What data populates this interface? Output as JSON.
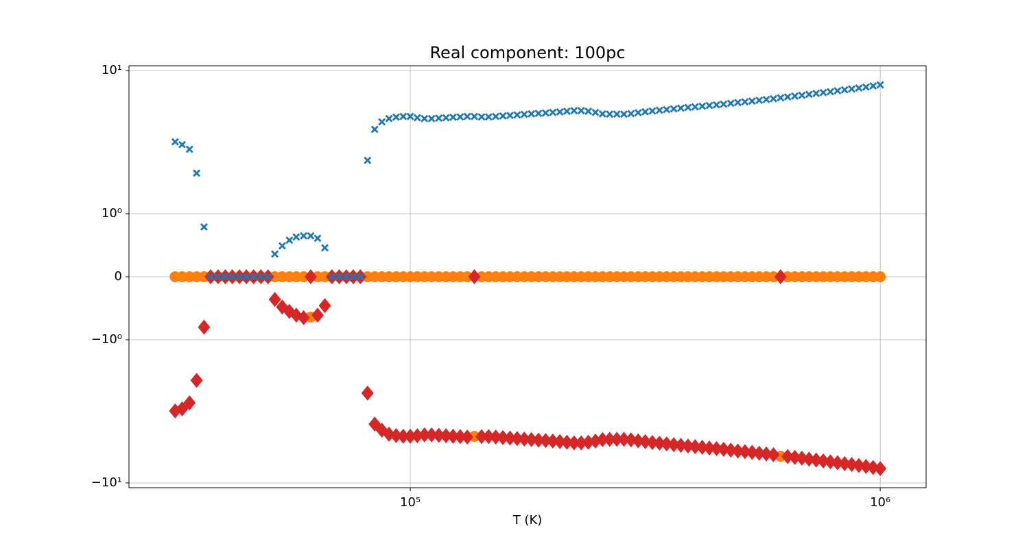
{
  "chart_data": {
    "type": "scatter",
    "title": "Real component: 100pc",
    "x_label": "T (K)",
    "xscale": "log",
    "yscale": "symlog",
    "linthresh": 1,
    "grid": true,
    "xlim": [
      25200,
      1252000
    ],
    "xticks": [
      {
        "value": 100000,
        "label": "10⁵"
      },
      {
        "value": 1000000,
        "label": "10⁶"
      }
    ],
    "ylim": [
      -10.8,
      10.8
    ],
    "yticks": [
      {
        "value": -10,
        "label": "−10¹"
      },
      {
        "value": -1,
        "label": "−10⁰"
      },
      0,
      {
        "value": 1,
        "label": "10⁰"
      },
      {
        "value": 10,
        "label": "10¹"
      }
    ],
    "x": [
      31600,
      32700,
      33900,
      35100,
      36400,
      37600,
      39000,
      40400,
      41800,
      43300,
      44800,
      46400,
      48100,
      49800,
      51500,
      53400,
      55300,
      57200,
      59300,
      61400,
      63500,
      65800,
      68100,
      70600,
      73100,
      75600,
      78300,
      81100,
      84000,
      87000,
      90100,
      93300,
      96600,
      100000,
      103500,
      107200,
      111000,
      115000,
      119100,
      123300,
      127700,
      132200,
      136900,
      141800,
      146800,
      152000,
      157400,
      163000,
      168800,
      174800,
      181000,
      187400,
      194100,
      201000,
      208100,
      215400,
      223100,
      231000,
      239200,
      247700,
      256500,
      265600,
      275100,
      284800,
      294900,
      305400,
      316200,
      327400,
      339100,
      351100,
      363600,
      376500,
      389900,
      403700,
      418100,
      432900,
      448300,
      464200,
      480700,
      497700,
      515400,
      533700,
      552700,
      572300,
      592600,
      613600,
      635400,
      658000,
      681300,
      705500,
      730500,
      756500,
      783300,
      811100,
      839900,
      869700,
      900600,
      932600,
      965700,
      1000000
    ],
    "series": [
      {
        "color": "#1f77b4",
        "marker": "x",
        "values": [
          3.18,
          3.04,
          2.82,
          1.92,
          0.79,
          0,
          0,
          0,
          0,
          0,
          0,
          0,
          0,
          0,
          0.36,
          0.49,
          0.58,
          0.63,
          0.65,
          0.65,
          0.61,
          0.46,
          0,
          0,
          0,
          0,
          0,
          2.36,
          3.88,
          4.38,
          4.62,
          4.73,
          4.78,
          4.78,
          4.68,
          4.62,
          4.62,
          4.65,
          4.68,
          4.72,
          4.75,
          4.78,
          4.78,
          4.75,
          4.75,
          4.78,
          4.82,
          4.86,
          4.9,
          4.94,
          4.98,
          5.02,
          5.06,
          5.1,
          5.14,
          5.2,
          5.25,
          5.25,
          5.2,
          5.1,
          4.98,
          4.96,
          4.96,
          4.96,
          5.0,
          5.08,
          5.15,
          5.22,
          5.28,
          5.34,
          5.4,
          5.46,
          5.52,
          5.58,
          5.64,
          5.7,
          5.76,
          5.82,
          5.9,
          5.98,
          6.05,
          6.12,
          6.2,
          6.28,
          6.36,
          6.45,
          6.54,
          6.63,
          6.72,
          6.82,
          6.92,
          7.02,
          7.12,
          7.22,
          7.33,
          7.44,
          7.55,
          7.66,
          7.8,
          7.94
        ]
      },
      {
        "color": "#ff7f0e",
        "marker": "circle",
        "values": [
          0,
          0,
          0,
          0,
          0,
          0,
          0,
          0,
          0,
          0,
          0,
          0,
          0,
          0,
          0,
          0,
          0,
          0,
          0,
          -0.64,
          0,
          0,
          0,
          0,
          0,
          0,
          0,
          0,
          0,
          0,
          0,
          0,
          0,
          0,
          0,
          0,
          0,
          0,
          0,
          0,
          0,
          0,
          -4.73,
          0,
          0,
          0,
          0,
          0,
          0,
          0,
          0,
          0,
          0,
          0,
          0,
          0,
          0,
          0,
          0,
          0,
          0,
          0,
          0,
          0,
          0,
          0,
          0,
          0,
          0,
          0,
          0,
          0,
          0,
          0,
          0,
          0,
          0,
          0,
          0,
          0,
          0,
          0,
          0,
          0,
          0,
          -6.51,
          0,
          0,
          0,
          0,
          0,
          0,
          0,
          0,
          0,
          0,
          0,
          0,
          0,
          0
        ]
      },
      {
        "color": "#d62728",
        "marker": "diamond",
        "values": [
          -3.14,
          -3.04,
          -2.76,
          -1.92,
          -0.8,
          0,
          0,
          0,
          0,
          0,
          0,
          0,
          0,
          0,
          -0.36,
          -0.48,
          -0.55,
          -0.61,
          -0.65,
          0,
          -0.61,
          -0.46,
          0,
          0,
          0,
          0,
          0,
          -2.36,
          -3.88,
          -4.28,
          -4.57,
          -4.67,
          -4.72,
          -4.72,
          -4.68,
          -4.62,
          -4.62,
          -4.65,
          -4.68,
          -4.72,
          -4.75,
          -4.78,
          0,
          -4.75,
          -4.75,
          -4.78,
          -4.82,
          -4.86,
          -4.9,
          -4.94,
          -4.98,
          -5.02,
          -5.06,
          -5.1,
          -5.14,
          -5.2,
          -5.25,
          -5.25,
          -5.2,
          -5.1,
          -4.98,
          -4.96,
          -4.96,
          -4.96,
          -5.0,
          -5.08,
          -5.15,
          -5.22,
          -5.28,
          -5.34,
          -5.4,
          -5.46,
          -5.52,
          -5.58,
          -5.64,
          -5.7,
          -5.76,
          -5.82,
          -5.9,
          -5.98,
          -6.05,
          -6.12,
          -6.2,
          -6.28,
          -6.36,
          0,
          -6.54,
          -6.63,
          -6.72,
          -6.82,
          -6.92,
          -7.02,
          -7.12,
          -7.22,
          -7.33,
          -7.44,
          -7.55,
          -7.66,
          -7.8,
          -7.94
        ]
      }
    ]
  }
}
